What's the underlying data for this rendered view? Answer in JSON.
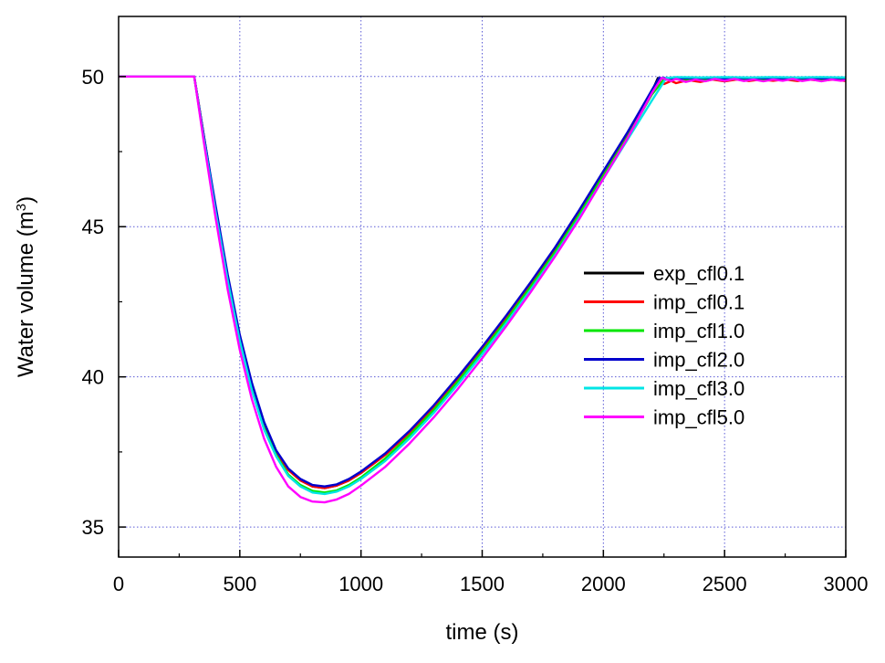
{
  "chart_data": {
    "type": "line",
    "xlabel": "time (s)",
    "ylabel": {
      "main": "Water volume (m",
      "superscript": "3",
      "close": ")"
    },
    "xlim": [
      0,
      3000
    ],
    "ylim": [
      34,
      52
    ],
    "xticks": [
      0,
      500,
      1000,
      1500,
      2000,
      2500,
      3000
    ],
    "yticks": [
      35,
      40,
      45,
      50
    ],
    "grid": true,
    "legend_position": "right-center",
    "series": [
      {
        "name": "exp_cfl0.1",
        "color": "#000000",
        "points": [
          [
            0,
            50
          ],
          [
            300,
            50
          ],
          [
            312,
            50
          ],
          [
            350,
            48.1
          ],
          [
            400,
            45.6
          ],
          [
            450,
            43.3
          ],
          [
            500,
            41.3
          ],
          [
            550,
            39.7
          ],
          [
            600,
            38.4
          ],
          [
            650,
            37.5
          ],
          [
            700,
            36.9
          ],
          [
            750,
            36.55
          ],
          [
            800,
            36.35
          ],
          [
            850,
            36.3
          ],
          [
            900,
            36.38
          ],
          [
            950,
            36.55
          ],
          [
            1000,
            36.8
          ],
          [
            1100,
            37.4
          ],
          [
            1200,
            38.15
          ],
          [
            1300,
            39.0
          ],
          [
            1400,
            39.95
          ],
          [
            1500,
            40.95
          ],
          [
            1600,
            42.0
          ],
          [
            1700,
            43.1
          ],
          [
            1800,
            44.25
          ],
          [
            1900,
            45.5
          ],
          [
            2000,
            46.8
          ],
          [
            2100,
            48.1
          ],
          [
            2200,
            49.5
          ],
          [
            2225,
            49.95
          ],
          [
            2260,
            49.9
          ],
          [
            2300,
            49.95
          ],
          [
            2400,
            49.93
          ],
          [
            2500,
            49.95
          ],
          [
            2600,
            49.93
          ],
          [
            2700,
            49.95
          ],
          [
            2800,
            49.94
          ],
          [
            2900,
            49.93
          ],
          [
            3000,
            49.93
          ]
        ]
      },
      {
        "name": "imp_cfl0.1",
        "color": "#ff0000",
        "points": [
          [
            0,
            50
          ],
          [
            300,
            50
          ],
          [
            312,
            50
          ],
          [
            350,
            48.1
          ],
          [
            400,
            45.6
          ],
          [
            450,
            43.3
          ],
          [
            500,
            41.3
          ],
          [
            550,
            39.7
          ],
          [
            600,
            38.4
          ],
          [
            650,
            37.5
          ],
          [
            700,
            36.9
          ],
          [
            750,
            36.55
          ],
          [
            800,
            36.35
          ],
          [
            850,
            36.3
          ],
          [
            900,
            36.38
          ],
          [
            950,
            36.55
          ],
          [
            1000,
            36.8
          ],
          [
            1100,
            37.4
          ],
          [
            1200,
            38.15
          ],
          [
            1300,
            39.0
          ],
          [
            1400,
            39.95
          ],
          [
            1500,
            40.95
          ],
          [
            1600,
            42.0
          ],
          [
            1700,
            43.1
          ],
          [
            1800,
            44.25
          ],
          [
            1900,
            45.5
          ],
          [
            2000,
            46.8
          ],
          [
            2100,
            48.1
          ],
          [
            2200,
            49.5
          ],
          [
            2230,
            49.85
          ],
          [
            2250,
            49.75
          ],
          [
            2280,
            49.85
          ],
          [
            2300,
            49.78
          ],
          [
            2350,
            49.88
          ],
          [
            2400,
            49.82
          ],
          [
            2450,
            49.9
          ],
          [
            2500,
            49.84
          ],
          [
            2550,
            49.9
          ],
          [
            2600,
            49.85
          ],
          [
            2650,
            49.9
          ],
          [
            2700,
            49.86
          ],
          [
            2750,
            49.9
          ],
          [
            2800,
            49.85
          ],
          [
            2850,
            49.9
          ],
          [
            2900,
            49.86
          ],
          [
            2950,
            49.9
          ],
          [
            3000,
            49.85
          ]
        ]
      },
      {
        "name": "imp_cfl1.0",
        "color": "#00e600",
        "points": [
          [
            0,
            50
          ],
          [
            300,
            50
          ],
          [
            312,
            50
          ],
          [
            350,
            48.0
          ],
          [
            400,
            45.5
          ],
          [
            450,
            43.2
          ],
          [
            500,
            41.2
          ],
          [
            550,
            39.6
          ],
          [
            600,
            38.3
          ],
          [
            650,
            37.4
          ],
          [
            700,
            36.75
          ],
          [
            750,
            36.4
          ],
          [
            800,
            36.2
          ],
          [
            850,
            36.15
          ],
          [
            900,
            36.22
          ],
          [
            950,
            36.4
          ],
          [
            1000,
            36.65
          ],
          [
            1100,
            37.28
          ],
          [
            1200,
            38.05
          ],
          [
            1300,
            38.9
          ],
          [
            1400,
            39.85
          ],
          [
            1500,
            40.85
          ],
          [
            1600,
            41.9
          ],
          [
            1700,
            43.0
          ],
          [
            1800,
            44.15
          ],
          [
            1900,
            45.4
          ],
          [
            2000,
            46.7
          ],
          [
            2100,
            48.0
          ],
          [
            2200,
            49.4
          ],
          [
            2250,
            49.9
          ],
          [
            2300,
            49.92
          ],
          [
            2400,
            49.9
          ],
          [
            2500,
            49.92
          ],
          [
            2600,
            49.9
          ],
          [
            2700,
            49.92
          ],
          [
            2800,
            49.9
          ],
          [
            2900,
            49.92
          ],
          [
            3000,
            49.9
          ]
        ]
      },
      {
        "name": "imp_cfl2.0",
        "color": "#0000cc",
        "points": [
          [
            0,
            50
          ],
          [
            300,
            50
          ],
          [
            312,
            50
          ],
          [
            350,
            48.1
          ],
          [
            400,
            45.7
          ],
          [
            450,
            43.4
          ],
          [
            500,
            41.4
          ],
          [
            550,
            39.8
          ],
          [
            600,
            38.5
          ],
          [
            650,
            37.55
          ],
          [
            700,
            36.95
          ],
          [
            750,
            36.6
          ],
          [
            800,
            36.4
          ],
          [
            850,
            36.35
          ],
          [
            900,
            36.42
          ],
          [
            950,
            36.6
          ],
          [
            1000,
            36.85
          ],
          [
            1100,
            37.45
          ],
          [
            1200,
            38.2
          ],
          [
            1300,
            39.05
          ],
          [
            1400,
            40.0
          ],
          [
            1500,
            41.0
          ],
          [
            1600,
            42.05
          ],
          [
            1700,
            43.15
          ],
          [
            1800,
            44.3
          ],
          [
            1900,
            45.55
          ],
          [
            2000,
            46.85
          ],
          [
            2100,
            48.15
          ],
          [
            2200,
            49.55
          ],
          [
            2230,
            49.95
          ],
          [
            2300,
            49.94
          ],
          [
            2400,
            49.95
          ],
          [
            2500,
            49.94
          ],
          [
            2600,
            49.95
          ],
          [
            2700,
            49.94
          ],
          [
            2800,
            49.95
          ],
          [
            2900,
            49.94
          ],
          [
            3000,
            49.95
          ]
        ]
      },
      {
        "name": "imp_cfl3.0",
        "color": "#00e5e5",
        "points": [
          [
            0,
            50
          ],
          [
            300,
            50
          ],
          [
            312,
            50
          ],
          [
            350,
            48.0
          ],
          [
            400,
            45.5
          ],
          [
            450,
            43.2
          ],
          [
            500,
            41.2
          ],
          [
            550,
            39.55
          ],
          [
            600,
            38.25
          ],
          [
            650,
            37.35
          ],
          [
            700,
            36.7
          ],
          [
            750,
            36.35
          ],
          [
            800,
            36.15
          ],
          [
            850,
            36.1
          ],
          [
            900,
            36.18
          ],
          [
            950,
            36.35
          ],
          [
            1000,
            36.6
          ],
          [
            1100,
            37.2
          ],
          [
            1200,
            37.95
          ],
          [
            1300,
            38.8
          ],
          [
            1400,
            39.75
          ],
          [
            1500,
            40.75
          ],
          [
            1600,
            41.8
          ],
          [
            1700,
            42.9
          ],
          [
            1800,
            44.05
          ],
          [
            1900,
            45.3
          ],
          [
            2000,
            46.6
          ],
          [
            2100,
            47.9
          ],
          [
            2200,
            49.2
          ],
          [
            2260,
            49.95
          ],
          [
            2300,
            49.98
          ],
          [
            2400,
            49.97
          ],
          [
            2500,
            49.98
          ],
          [
            2600,
            49.97
          ],
          [
            2700,
            49.98
          ],
          [
            2800,
            49.97
          ],
          [
            2900,
            49.98
          ],
          [
            3000,
            49.97
          ]
        ]
      },
      {
        "name": "imp_cfl5.0",
        "color": "#ff00ff",
        "points": [
          [
            0,
            50
          ],
          [
            300,
            50
          ],
          [
            312,
            50
          ],
          [
            350,
            47.9
          ],
          [
            400,
            45.3
          ],
          [
            450,
            42.9
          ],
          [
            500,
            40.9
          ],
          [
            550,
            39.25
          ],
          [
            600,
            37.95
          ],
          [
            650,
            37.0
          ],
          [
            700,
            36.35
          ],
          [
            750,
            36.0
          ],
          [
            800,
            35.85
          ],
          [
            850,
            35.82
          ],
          [
            900,
            35.92
          ],
          [
            950,
            36.1
          ],
          [
            1000,
            36.38
          ],
          [
            1100,
            37.0
          ],
          [
            1200,
            37.78
          ],
          [
            1300,
            38.65
          ],
          [
            1400,
            39.6
          ],
          [
            1500,
            40.62
          ],
          [
            1600,
            41.7
          ],
          [
            1700,
            42.82
          ],
          [
            1800,
            44.0
          ],
          [
            1900,
            45.25
          ],
          [
            2000,
            46.6
          ],
          [
            2100,
            47.95
          ],
          [
            2200,
            49.45
          ],
          [
            2240,
            49.95
          ],
          [
            2280,
            49.85
          ],
          [
            2300,
            49.92
          ],
          [
            2340,
            49.82
          ],
          [
            2380,
            49.9
          ],
          [
            2420,
            49.84
          ],
          [
            2460,
            49.92
          ],
          [
            2500,
            49.86
          ],
          [
            2540,
            49.92
          ],
          [
            2580,
            49.85
          ],
          [
            2620,
            49.9
          ],
          [
            2660,
            49.84
          ],
          [
            2700,
            49.9
          ],
          [
            2740,
            49.86
          ],
          [
            2780,
            49.92
          ],
          [
            2820,
            49.85
          ],
          [
            2860,
            49.9
          ],
          [
            2900,
            49.84
          ],
          [
            2940,
            49.9
          ],
          [
            2980,
            49.86
          ],
          [
            3000,
            49.88
          ]
        ]
      }
    ]
  }
}
